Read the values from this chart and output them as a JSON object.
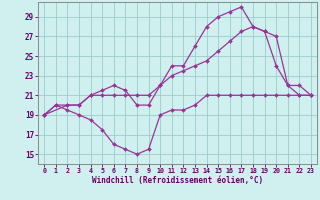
{
  "bg_color": "#d0f0f0",
  "line_color": "#993399",
  "grid_color": "#99cccc",
  "xlim_min": -0.5,
  "xlim_max": 23.5,
  "ylim_min": 14.0,
  "ylim_max": 30.5,
  "yticks": [
    15,
    17,
    19,
    21,
    23,
    25,
    27,
    29
  ],
  "xticks": [
    0,
    1,
    2,
    3,
    4,
    5,
    6,
    7,
    8,
    9,
    10,
    11,
    12,
    13,
    14,
    15,
    16,
    17,
    18,
    19,
    20,
    21,
    22,
    23
  ],
  "xlabel": "Windchill (Refroidissement éolien,°C)",
  "line1_x": [
    0,
    1,
    2,
    3,
    4,
    5,
    6,
    7,
    8,
    9,
    10,
    11,
    12,
    13,
    14,
    15,
    16,
    17,
    18,
    19,
    20,
    21,
    22,
    23
  ],
  "line1_y": [
    19,
    20,
    19.5,
    19,
    18.5,
    17.5,
    16,
    15.5,
    15,
    15.5,
    19,
    19.5,
    19.5,
    20,
    21,
    21,
    21,
    21,
    21,
    21,
    21,
    21,
    21,
    21
  ],
  "line2_x": [
    0,
    1,
    2,
    3,
    4,
    5,
    6,
    7,
    8,
    9,
    10,
    11,
    12,
    13,
    14,
    15,
    16,
    17,
    18,
    19,
    20,
    21,
    22,
    23
  ],
  "line2_y": [
    19,
    20,
    20,
    20,
    21,
    21,
    21,
    21,
    21,
    21,
    22,
    23,
    23.5,
    24,
    24.5,
    25.5,
    26.5,
    27.5,
    28,
    27.5,
    27,
    22,
    21,
    21
  ],
  "line3_x": [
    0,
    2,
    3,
    4,
    5,
    6,
    7,
    8,
    9,
    10,
    11,
    12,
    13,
    14,
    15,
    16,
    17,
    18,
    19,
    20,
    21,
    22,
    23
  ],
  "line3_y": [
    19,
    20,
    20,
    21,
    21.5,
    22,
    21.5,
    20,
    20,
    22,
    24,
    24,
    26,
    28,
    29,
    29.5,
    30,
    28,
    27.5,
    24,
    22,
    22,
    21
  ]
}
